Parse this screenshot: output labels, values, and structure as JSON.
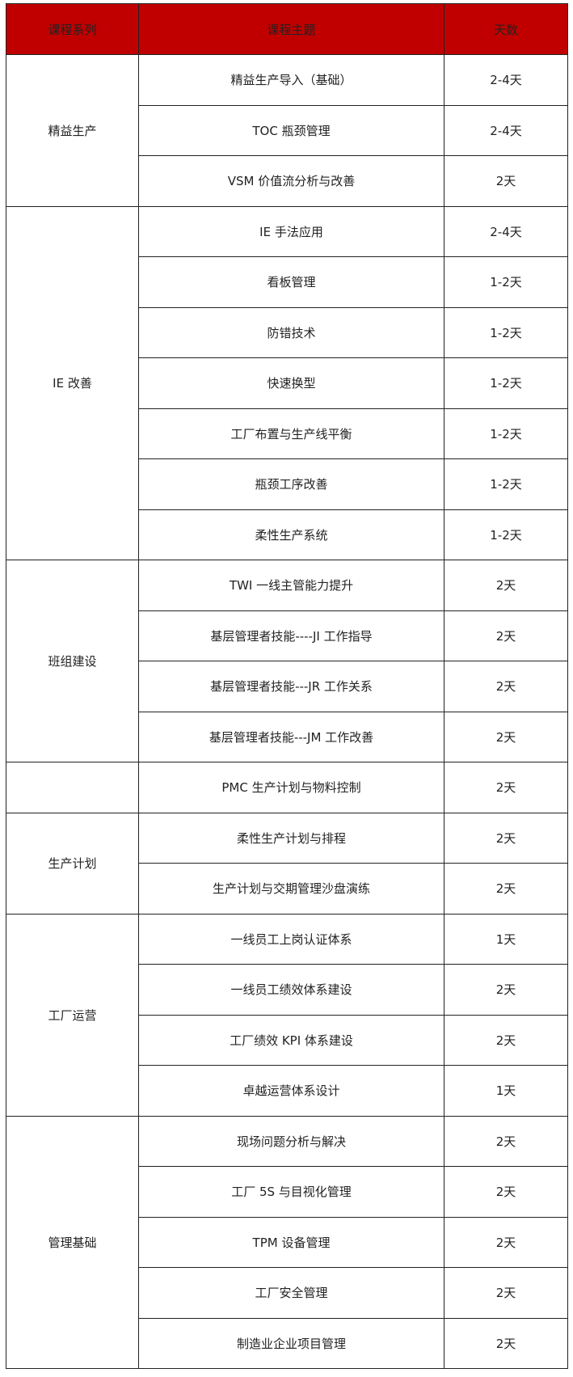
{
  "header": {
    "series": "课程系列",
    "topic": "课程主题",
    "days": "天数"
  },
  "header_color": "#c00000",
  "groups": [
    {
      "series": "精益生产",
      "rows": [
        [
          "精益生产导入（基础）",
          "2-4天"
        ],
        [
          "TOC 瓶颈管理",
          "2-4天"
        ],
        [
          "VSM 价值流分析与改善",
          "2天"
        ]
      ]
    },
    {
      "series": "IE 改善",
      "rows": [
        [
          "IE 手法应用",
          "2-4天"
        ],
        [
          "看板管理",
          "1-2天"
        ],
        [
          "防错技术",
          "1-2天"
        ],
        [
          "快速换型",
          "1-2天"
        ],
        [
          "工厂布置与生产线平衡",
          "1-2天"
        ],
        [
          "瓶颈工序改善",
          "1-2天"
        ],
        [
          "柔性生产系统",
          "1-2天"
        ]
      ]
    },
    {
      "series": "班组建设",
      "rows": [
        [
          "TWI 一线主管能力提升",
          "2天"
        ],
        [
          "基层管理者技能----JI 工作指导",
          "2天"
        ],
        [
          "基层管理者技能---JR 工作关系",
          "2天"
        ],
        [
          "基层管理者技能---JM 工作改善",
          "2天"
        ]
      ]
    },
    {
      "series": "",
      "rows": [
        [
          "PMC 生产计划与物料控制",
          "2天"
        ]
      ]
    },
    {
      "series": "生产计划",
      "rows": [
        [
          "柔性生产计划与排程",
          "2天"
        ],
        [
          "生产计划与交期管理沙盘演练",
          "2天"
        ]
      ]
    },
    {
      "series": "工厂运营",
      "rows": [
        [
          "一线员工上岗认证体系",
          "1天"
        ],
        [
          "一线员工绩效体系建设",
          "2天"
        ],
        [
          "工厂绩效 KPI 体系建设",
          "2天"
        ],
        [
          "卓越运营体系设计",
          "1天"
        ]
      ]
    },
    {
      "series": "管理基础",
      "rows": [
        [
          "现场问题分析与解决",
          "2天"
        ],
        [
          "工厂 5S 与目视化管理",
          "2天"
        ],
        [
          "TPM 设备管理",
          "2天"
        ],
        [
          "工厂安全管理",
          "2天"
        ],
        [
          "制造业企业项目管理",
          "2天"
        ]
      ]
    }
  ]
}
